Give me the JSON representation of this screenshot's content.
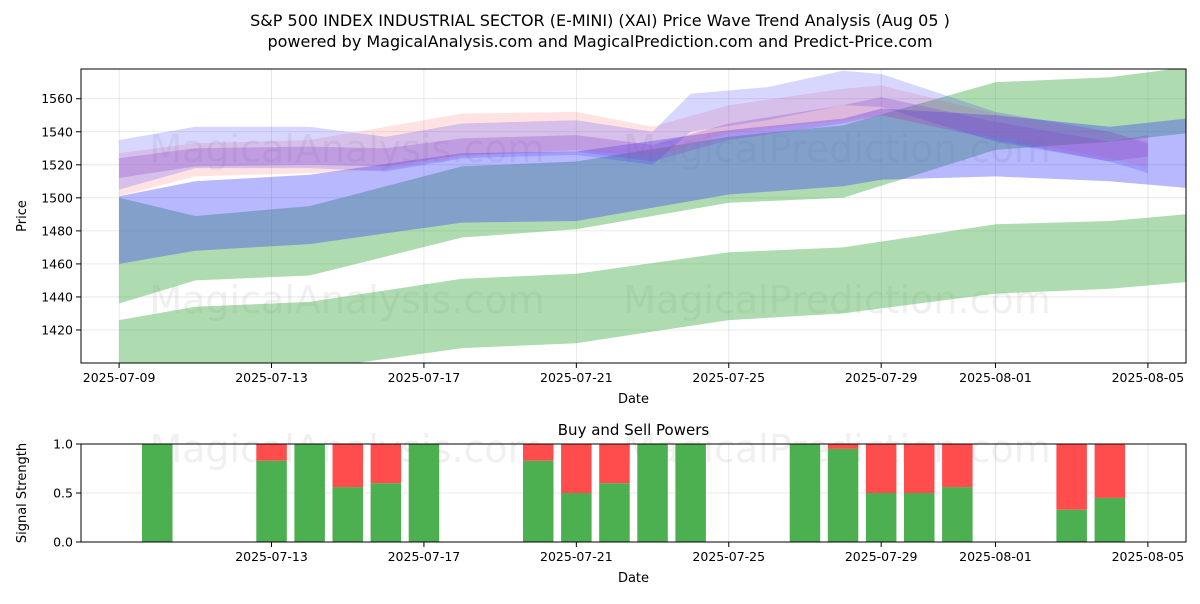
{
  "title_line1": "S&P 500 INDEX INDUSTRIAL SECTOR (E-MINI) (XAI) Price Wave Trend Analysis (Aug 05 )",
  "title_line2": "powered by MagicalAnalysis.com and MagicalPrediction.com and Predict-Price.com",
  "watermarks": [
    "MagicalAnalysis.com",
    "MagicalPrediction.com"
  ],
  "colors": {
    "green_band": "#4caf50",
    "blue_band": "#3333ff",
    "red_band": "#ff6666",
    "purple_band": "#8844cc",
    "buy": "#4caf50",
    "sell": "#ff4d4d"
  },
  "chart_data": [
    {
      "type": "area",
      "name": "price-wave-trend",
      "xlabel": "Date",
      "ylabel": "Price",
      "x_range": [
        "2025-07-08",
        "2025-08-06"
      ],
      "ylim": [
        1400,
        1578
      ],
      "x_ticks": [
        "2025-07-09",
        "2025-07-13",
        "2025-07-17",
        "2025-07-21",
        "2025-07-25",
        "2025-07-29",
        "2025-08-01",
        "2025-08-05"
      ],
      "y_ticks": [
        1420,
        1440,
        1460,
        1480,
        1500,
        1520,
        1540,
        1560
      ],
      "grid": true,
      "bands": [
        {
          "name": "green-long-upper",
          "color": "green",
          "alpha": 0.45,
          "x": [
            "2025-07-09",
            "2025-07-11",
            "2025-07-14",
            "2025-07-18",
            "2025-07-21",
            "2025-07-25",
            "2025-07-28",
            "2025-08-01",
            "2025-08-04",
            "2025-08-06"
          ],
          "upper": [
            1500,
            1489,
            1495,
            1519,
            1522,
            1537,
            1544,
            1570,
            1573,
            1579
          ],
          "lower": [
            1436,
            1450,
            1453,
            1476,
            1481,
            1497,
            1500,
            1529,
            1534,
            1539
          ]
        },
        {
          "name": "green-long-lower",
          "color": "green",
          "alpha": 0.45,
          "x": [
            "2025-07-09",
            "2025-07-11",
            "2025-07-14",
            "2025-07-18",
            "2025-07-21",
            "2025-07-25",
            "2025-07-28",
            "2025-08-01",
            "2025-08-04",
            "2025-08-06"
          ],
          "upper": [
            1426,
            1434,
            1437,
            1451,
            1454,
            1467,
            1470,
            1484,
            1486,
            1490
          ],
          "lower": [
            1393,
            1399,
            1396,
            1409,
            1412,
            1426,
            1430,
            1442,
            1445,
            1449
          ]
        },
        {
          "name": "steel-blue-main",
          "color": "blue",
          "alpha": 0.35,
          "x": [
            "2025-07-09",
            "2025-07-11",
            "2025-07-14",
            "2025-07-18",
            "2025-07-21",
            "2025-07-25",
            "2025-07-28",
            "2025-07-29",
            "2025-08-01",
            "2025-08-04",
            "2025-08-06"
          ],
          "upper": [
            1501,
            1510,
            1514,
            1527,
            1528,
            1541,
            1548,
            1554,
            1550,
            1543,
            1548
          ],
          "lower": [
            1460,
            1468,
            1472,
            1485,
            1486,
            1502,
            1507,
            1511,
            1513,
            1510,
            1506
          ]
        },
        {
          "name": "red-wave",
          "color": "red",
          "alpha": 0.18,
          "x": [
            "2025-07-09",
            "2025-07-11",
            "2025-07-14",
            "2025-07-16",
            "2025-07-18",
            "2025-07-21",
            "2025-07-23",
            "2025-07-25",
            "2025-07-28",
            "2025-07-29",
            "2025-08-01",
            "2025-08-04",
            "2025-08-05"
          ],
          "upper": [
            1527,
            1533,
            1535,
            1543,
            1551,
            1552,
            1543,
            1556,
            1566,
            1568,
            1551,
            1540,
            1534
          ],
          "lower": [
            1501,
            1513,
            1515,
            1517,
            1525,
            1529,
            1525,
            1539,
            1547,
            1550,
            1537,
            1524,
            1518
          ]
        },
        {
          "name": "blue-wave",
          "color": "blue",
          "alpha": 0.2,
          "x": [
            "2025-07-09",
            "2025-07-11",
            "2025-07-14",
            "2025-07-16",
            "2025-07-18",
            "2025-07-21",
            "2025-07-23",
            "2025-07-24",
            "2025-07-26",
            "2025-07-28",
            "2025-07-29",
            "2025-08-01",
            "2025-08-04",
            "2025-08-05"
          ],
          "upper": [
            1535,
            1543,
            1543,
            1537,
            1545,
            1547,
            1540,
            1563,
            1567,
            1577,
            1575,
            1552,
            1540,
            1533
          ],
          "lower": [
            1505,
            1518,
            1518,
            1516,
            1524,
            1526,
            1520,
            1540,
            1547,
            1556,
            1555,
            1534,
            1522,
            1515
          ]
        },
        {
          "name": "purple-wave",
          "color": "purple",
          "alpha": 0.28,
          "x": [
            "2025-07-09",
            "2025-07-11",
            "2025-07-14",
            "2025-07-16",
            "2025-07-18",
            "2025-07-21",
            "2025-07-23",
            "2025-07-25",
            "2025-07-28",
            "2025-07-29",
            "2025-08-01",
            "2025-08-04",
            "2025-08-05"
          ],
          "upper": [
            1524,
            1530,
            1531,
            1530,
            1536,
            1538,
            1532,
            1545,
            1556,
            1561,
            1546,
            1534,
            1538
          ],
          "lower": [
            1512,
            1519,
            1520,
            1519,
            1526,
            1528,
            1522,
            1535,
            1545,
            1550,
            1535,
            1522,
            1525
          ]
        }
      ]
    },
    {
      "type": "bar",
      "name": "buy-sell-powers",
      "title": "Buy and Sell Powers",
      "xlabel": "Date",
      "ylabel": "Signal Strength",
      "x_range": [
        "2025-07-08",
        "2025-08-06"
      ],
      "ylim": [
        0,
        1
      ],
      "x_ticks": [
        "2025-07-13",
        "2025-07-17",
        "2025-07-21",
        "2025-07-25",
        "2025-07-29",
        "2025-08-01",
        "2025-08-05"
      ],
      "y_ticks": [
        0.0,
        0.5,
        1.0
      ],
      "grid": true,
      "dates": [
        "2025-07-10",
        "2025-07-13",
        "2025-07-14",
        "2025-07-15",
        "2025-07-16",
        "2025-07-17",
        "2025-07-20",
        "2025-07-21",
        "2025-07-22",
        "2025-07-23",
        "2025-07-24",
        "2025-07-27",
        "2025-07-28",
        "2025-07-29",
        "2025-07-30",
        "2025-07-31",
        "2025-08-03",
        "2025-08-04"
      ],
      "series": [
        {
          "name": "buy",
          "values": [
            1.0,
            0.83,
            1.0,
            0.56,
            0.6,
            1.0,
            0.83,
            0.5,
            0.6,
            1.0,
            1.0,
            1.0,
            0.95,
            0.5,
            0.5,
            0.56,
            0.33,
            0.45
          ]
        },
        {
          "name": "sell",
          "values": [
            0.0,
            0.17,
            0.0,
            0.44,
            0.4,
            0.0,
            0.17,
            0.5,
            0.4,
            0.0,
            0.0,
            0.0,
            0.05,
            0.5,
            0.5,
            0.44,
            0.67,
            0.55
          ]
        }
      ]
    }
  ]
}
